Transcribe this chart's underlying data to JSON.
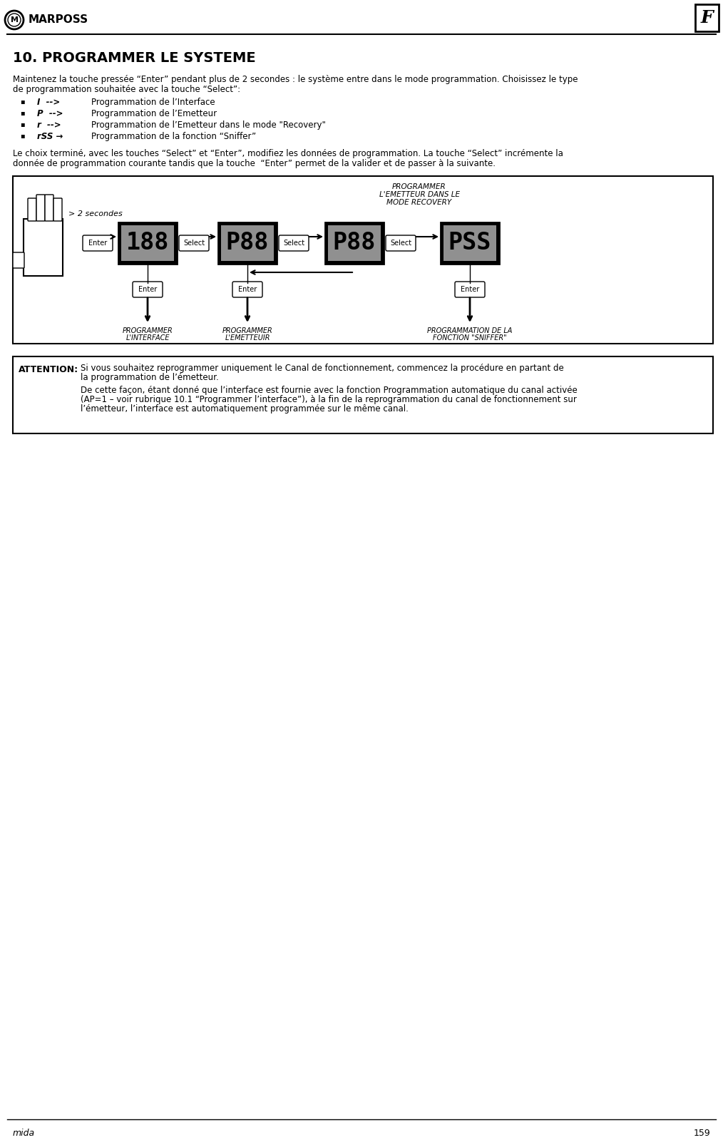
{
  "title": "10. PROGRAMMER LE SYSTEME",
  "header_company": "MARPOSS",
  "page_number": "159",
  "page_label": "mida",
  "language_flag": "F",
  "intro_line1": "Maintenez la touche pressée “Enter” pendant plus de 2 secondes : le système entre dans le mode programmation. Choisissez le type",
  "intro_line2": "de programmation souhaitée avec la touche “Select”:",
  "bullet_items": [
    [
      "I  -->",
      "Programmation de l’Interface"
    ],
    [
      "P  -->",
      "Programmation de l’Emetteur"
    ],
    [
      "r  -->",
      "Programmation de l’Emetteur dans le mode \"Recovery\""
    ],
    [
      "rSS →",
      "Programmation de la fonction “Sniffer”"
    ]
  ],
  "conclusion_line1": "Le choix terminé, avec les touches “Select” et “Enter”, modifiez les données de programmation. La touche “Select” incrémente la",
  "conclusion_line2": "donnée de programmation courante tandis que la touche  “Enter” permet de la valider et de passer à la suivante.",
  "attention_label": "ATTENTION:",
  "attention_text1_line1": "Si vous souhaitez reprogrammer uniquement le Canal de fonctionnement, commencez la procédure en partant de",
  "attention_text1_line2": "la programmation de l’émetteur.",
  "attention_text2_line1": "De cette façon, étant donné que l’interface est fournie avec la fonction Programmation automatique du canal activée",
  "attention_text2_line2": "(AP=1 – voir rubrique 10.1 “Programmer l’interface”), à la fin de la reprogrammation du canal de fonctionnement sur",
  "attention_text2_line3": "l’émetteur, l’interface est automatiquement programmée sur le même canal.",
  "diagram_label_2sec": "> 2 secondes",
  "diagram_boxes": [
    "188",
    "P88",
    "P88",
    "PSS"
  ],
  "diagram_label_recovery_line1": "PROGRAMMER",
  "diagram_label_recovery_line2": "L'EMETTEUR DANS LE",
  "diagram_label_recovery_line3": "MODE RECOVERY",
  "diagram_label_interface_line1": "PROGRAMMER",
  "diagram_label_interface_line2": "L'INTERFACE",
  "diagram_label_emetteur_line1": "PROGRAMMER",
  "diagram_label_emetteur_line2": "L'EMETTEUIR",
  "diagram_label_sniffer_line1": "PROGRAMMATION DE LA",
  "diagram_label_sniffer_line2": "FONCTION \"SNIFFER\"",
  "bg_color": "#ffffff",
  "text_color": "#000000"
}
